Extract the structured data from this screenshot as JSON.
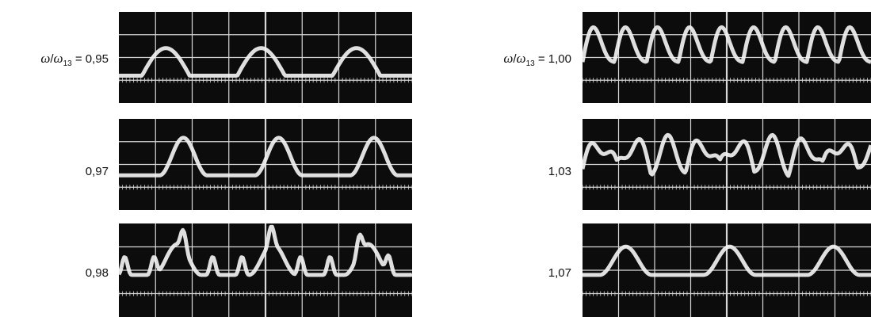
{
  "left_column": {
    "header": {
      "omega": "ω",
      "slash": "/",
      "omega_sub": "ω",
      "sub": "13",
      "equals": " = ",
      "value": "0,95"
    },
    "labels": [
      "0,97",
      "0,98"
    ]
  },
  "right_column": {
    "header": {
      "omega": "ω",
      "slash": "/",
      "omega_sub": "ω",
      "sub": "13",
      "equals": " = ",
      "value": "1,00"
    },
    "labels": [
      "1,03",
      "1,07"
    ]
  },
  "colors": {
    "screen": "#0c0c0c",
    "grid": "#d8d8d8",
    "trace": "#f2f2f2",
    "background": "#ffffff"
  }
}
